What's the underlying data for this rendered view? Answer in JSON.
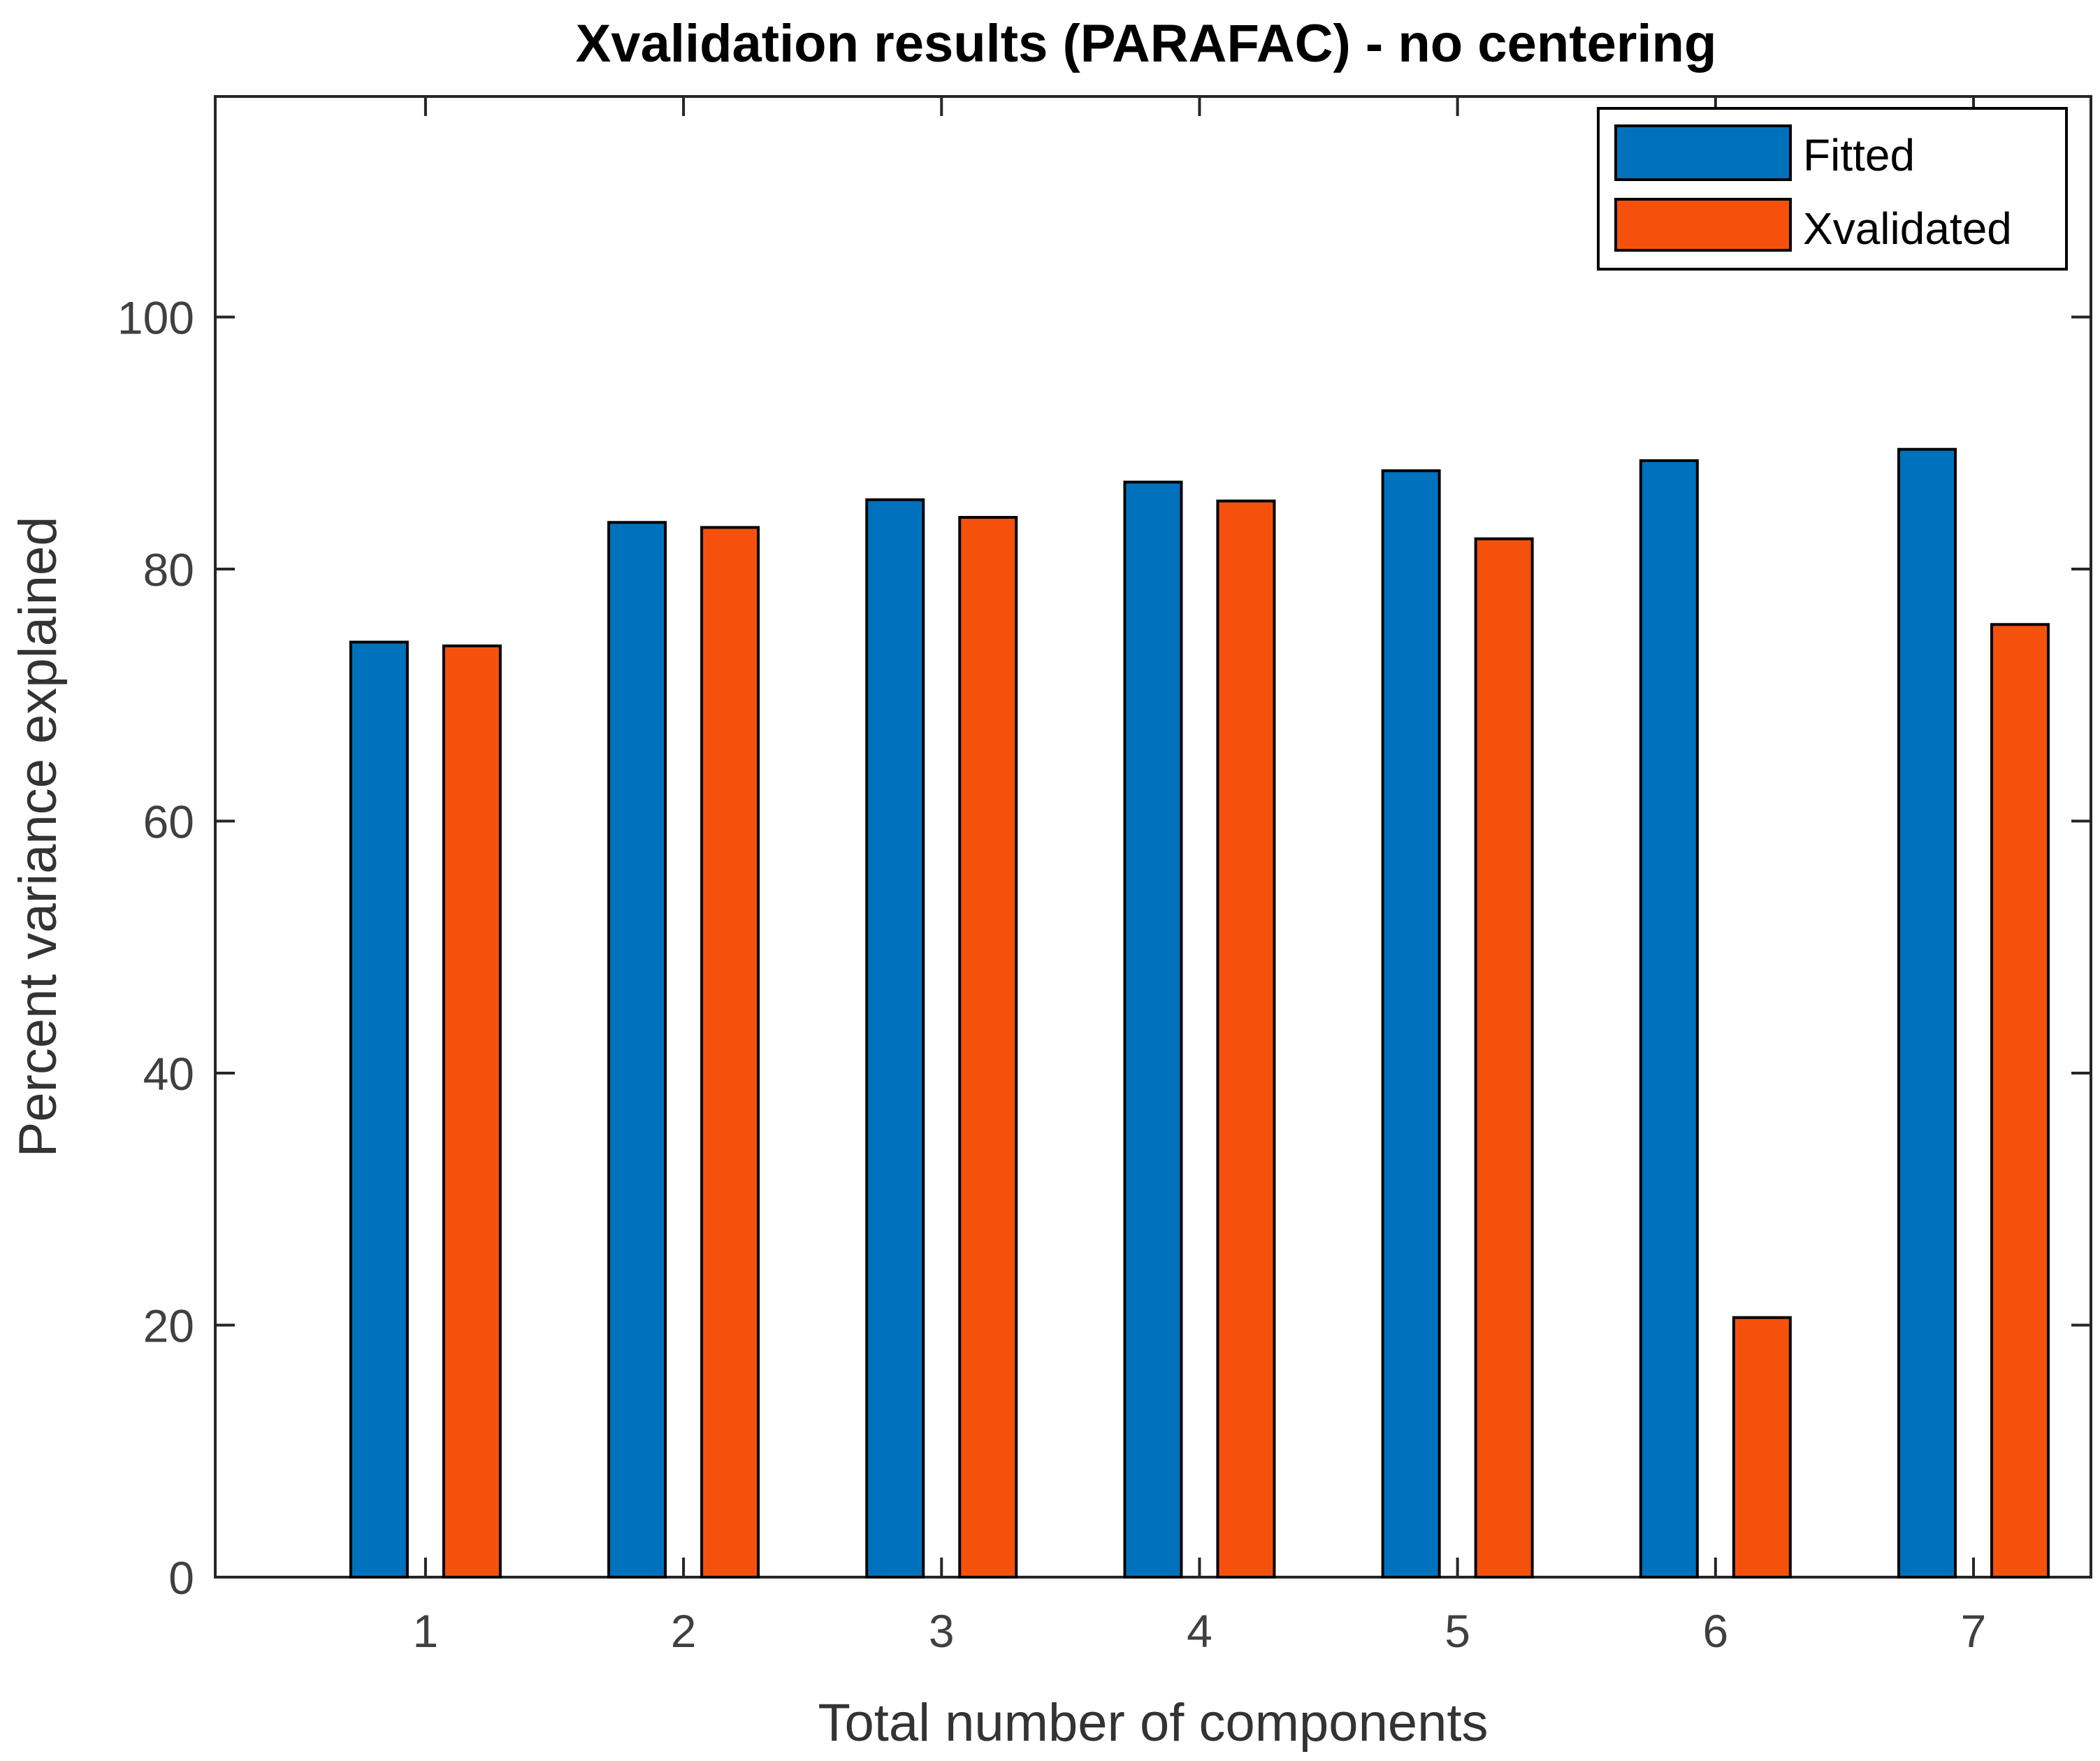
{
  "chart_data": {
    "type": "bar",
    "title": "Xvalidation results (PARAFAC) - no centering",
    "xlabel": "Total number of components",
    "ylabel": "Percent variance explained",
    "categories": [
      "1",
      "2",
      "3",
      "4",
      "5",
      "6",
      "7"
    ],
    "ylim": [
      0,
      117.5
    ],
    "yticks": [
      "0",
      "20",
      "40",
      "60",
      "80",
      "100"
    ],
    "series": [
      {
        "name": "Fitted",
        "color": "#0072BD",
        "values": [
          74.2,
          83.7,
          85.5,
          86.9,
          87.8,
          88.6,
          89.5
        ]
      },
      {
        "name": "Xvalidated",
        "color": "#F5510D",
        "values": [
          73.9,
          83.3,
          84.1,
          85.4,
          82.4,
          20.6,
          75.6
        ]
      }
    ],
    "legend_position": "top-right",
    "grid": false
  }
}
